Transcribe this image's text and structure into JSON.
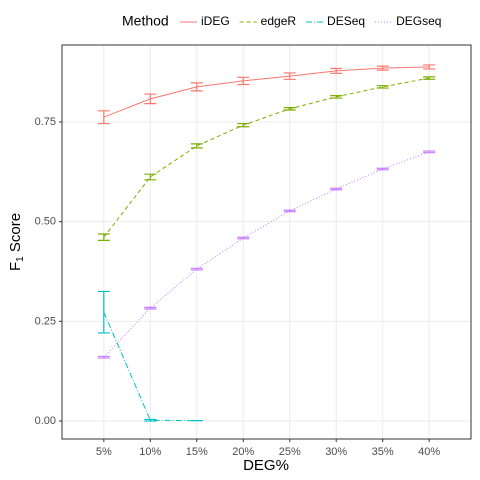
{
  "chart_data": {
    "type": "line",
    "x_label": "DEG%",
    "y_label": [
      "F",
      "1",
      " Score"
    ],
    "legend_title": "Method",
    "legend_position": "top",
    "grid": true,
    "categories": [
      "5%",
      "10%",
      "15%",
      "20%",
      "25%",
      "30%",
      "35%",
      "40%"
    ],
    "ylim": [
      -0.045,
      0.943
    ],
    "yticks": [
      {
        "value": 0,
        "label": "0.00"
      },
      {
        "value": 0.25,
        "label": "0.25"
      },
      {
        "value": 0.5,
        "label": "0.50"
      },
      {
        "value": 0.75,
        "label": "0.75"
      }
    ],
    "series": [
      {
        "name": "iDEG",
        "color": "#F8766D",
        "linestyle": "solid",
        "values": [
          0.762,
          0.808,
          0.838,
          0.853,
          0.865,
          0.878,
          0.885,
          0.888
        ],
        "errors": [
          0.016,
          0.012,
          0.01,
          0.009,
          0.008,
          0.006,
          0.005,
          0.005
        ]
      },
      {
        "name": "edgeR",
        "color": "#7CAE00",
        "linestyle": "dashed",
        "values": [
          0.461,
          0.612,
          0.69,
          0.742,
          0.783,
          0.813,
          0.838,
          0.86
        ],
        "errors": [
          0.008,
          0.007,
          0.005,
          0.004,
          0.003,
          0.003,
          0.003,
          0.003
        ]
      },
      {
        "name": "DESeq",
        "color": "#00BFC4",
        "linestyle": "dotdash",
        "values": [
          0.273,
          0.002,
          0.001,
          null,
          null,
          null,
          null,
          null
        ],
        "errors": [
          0.052,
          0.002,
          0.0,
          null,
          null,
          null,
          null,
          null
        ]
      },
      {
        "name": "DEGseq",
        "color": "#C77CFF",
        "linestyle": "dotted",
        "values": [
          0.16,
          0.283,
          0.381,
          0.459,
          0.527,
          0.582,
          0.632,
          0.675
        ],
        "errors": [
          0.002,
          0.002,
          0.002,
          0.002,
          0.002,
          0.002,
          0.002,
          0.002
        ]
      }
    ]
  }
}
